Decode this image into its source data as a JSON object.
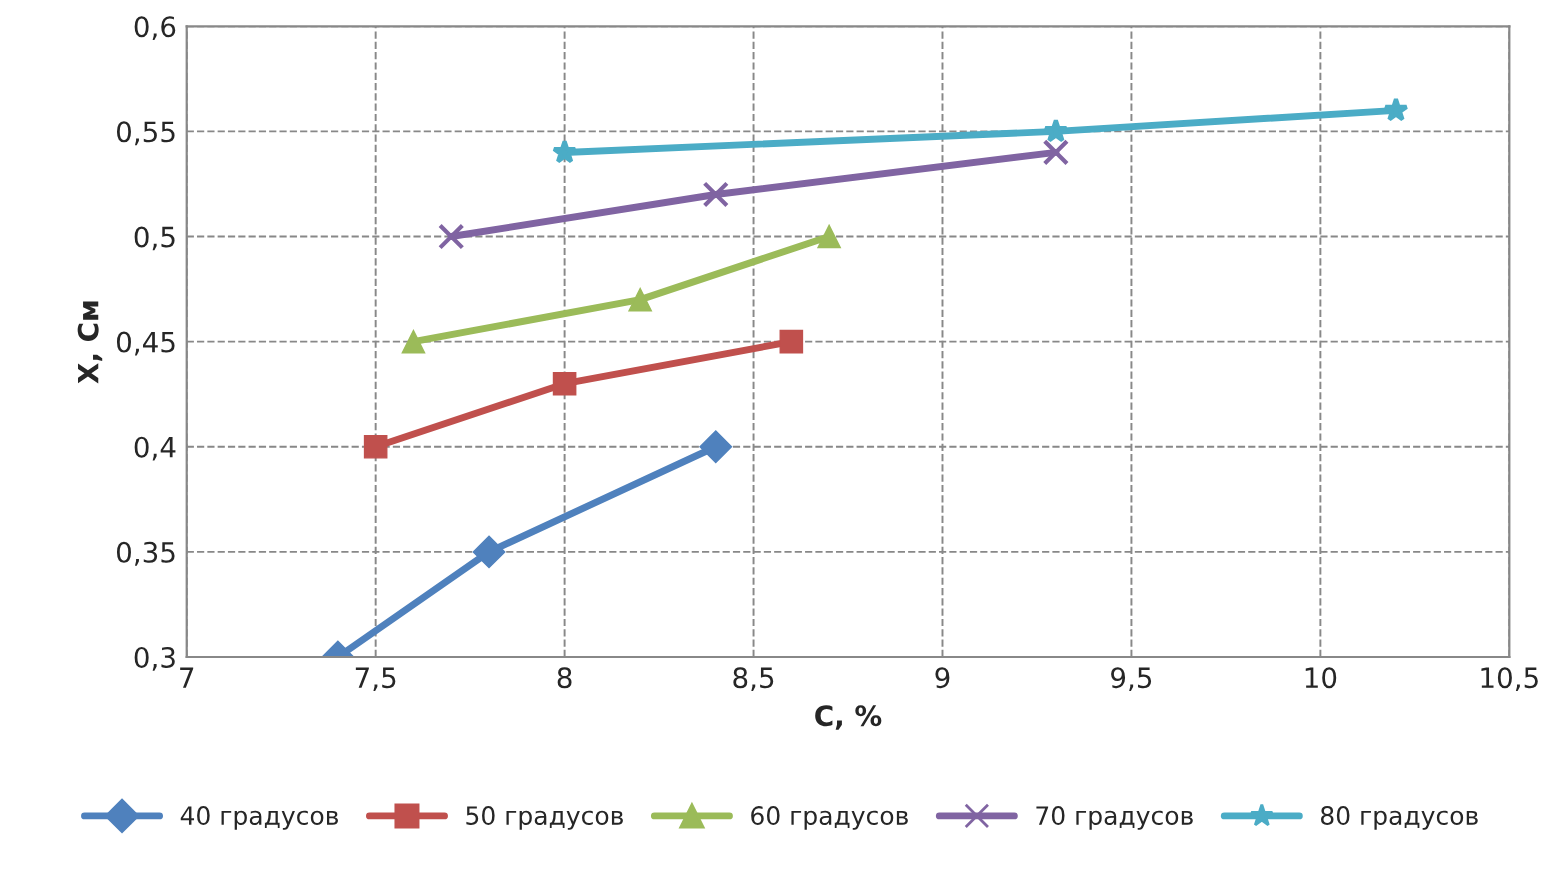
{
  "chart_data": {
    "type": "line",
    "xlabel": "С, %",
    "ylabel": "Х, См",
    "xlim": [
      7,
      10.5
    ],
    "ylim": [
      0.3,
      0.6
    ],
    "xticks": [
      7,
      {
        "value": 7.5,
        "label": "7,5"
      },
      8,
      {
        "value": 8.5,
        "label": "8,5"
      },
      9,
      {
        "value": 9.5,
        "label": "9,5"
      },
      10,
      {
        "value": 10.5,
        "label": "10,5"
      }
    ],
    "yticks": [
      {
        "value": 0.3,
        "label": "0,3"
      },
      {
        "value": 0.35,
        "label": "0,35"
      },
      {
        "value": 0.4,
        "label": "0,4"
      },
      {
        "value": 0.45,
        "label": "0,45"
      },
      {
        "value": 0.5,
        "label": "0,5"
      },
      {
        "value": 0.55,
        "label": "0,55"
      },
      {
        "value": 0.6,
        "label": "0,6"
      }
    ],
    "grid": true,
    "legend": "bottom",
    "line_style": "solid",
    "series": [
      {
        "name": "40 градусов",
        "color": "#4f81bd",
        "marker": "diamond",
        "x": [
          7.4,
          7.8,
          8.4
        ],
        "values": [
          0.3,
          0.35,
          0.4
        ]
      },
      {
        "name": "50 градусов",
        "color": "#c0504d",
        "marker": "square",
        "x": [
          7.5,
          8.0,
          8.6
        ],
        "values": [
          0.4,
          0.43,
          0.45
        ]
      },
      {
        "name": "60 градусов",
        "color": "#9bbb59",
        "marker": "triangle",
        "x": [
          7.6,
          8.2,
          8.7
        ],
        "values": [
          0.45,
          0.47,
          0.5
        ]
      },
      {
        "name": "70 градусов",
        "color": "#8064a2",
        "marker": "cross",
        "x": [
          7.7,
          8.4,
          9.3
        ],
        "values": [
          0.5,
          0.52,
          0.54
        ]
      },
      {
        "name": "80 градусов",
        "color": "#4bacc6",
        "marker": "star",
        "x": [
          8.0,
          9.3,
          10.2
        ],
        "values": [
          0.54,
          0.55,
          0.56
        ]
      }
    ]
  }
}
